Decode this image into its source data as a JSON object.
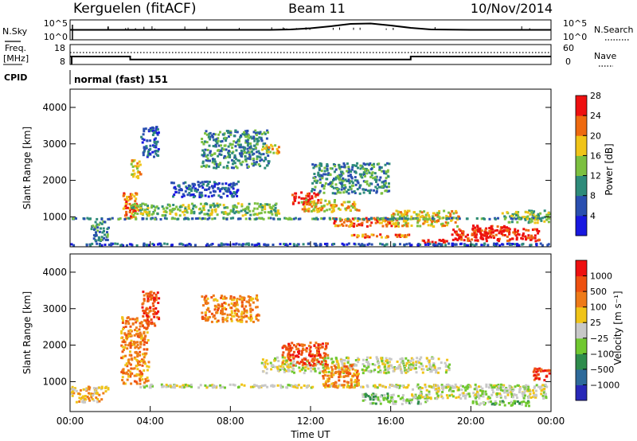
{
  "header": {
    "station": "Kerguelen (fitACF)",
    "beam": "Beam 11",
    "date": "10/Nov/2014"
  },
  "nsky_panel": {
    "left_label": "N.Sky",
    "left_ticks": [
      "10^5",
      "10^0"
    ],
    "right_label": "N.Search",
    "right_ticks": [
      "10^5",
      "10^0"
    ]
  },
  "freq_panel": {
    "left_label_line1": "Freq.",
    "left_label_line2": "[MHz]",
    "left_ticks": [
      "18",
      "8"
    ],
    "right_label": "Nave",
    "right_ticks": [
      "60",
      "0"
    ]
  },
  "cpid_panel": {
    "label": "CPID",
    "mode": "normal (fast) 151"
  },
  "chart_data": [
    {
      "type": "line",
      "name": "nsky-search",
      "x": [
        0,
        2,
        4,
        6,
        8,
        10,
        11,
        12,
        13,
        14,
        15,
        16,
        17,
        18,
        20,
        22,
        24
      ],
      "y": [
        0.5,
        0.5,
        0.5,
        0.5,
        0.5,
        0.5,
        0.52,
        0.58,
        0.68,
        0.8,
        0.82,
        0.72,
        0.6,
        0.52,
        0.5,
        0.5,
        0.5
      ],
      "ylim": [
        0,
        1
      ],
      "xlim": [
        0,
        24
      ]
    },
    {
      "type": "line",
      "name": "frequency-nave",
      "x": [
        0,
        3,
        3,
        17,
        17,
        24
      ],
      "y": [
        12,
        12,
        10.5,
        10.5,
        12,
        12
      ],
      "ylim": [
        8,
        18
      ],
      "xlim": [
        0,
        24
      ]
    },
    {
      "type": "heatmap",
      "name": "power",
      "xlim": [
        0,
        24
      ],
      "ylim": [
        180,
        4500
      ],
      "xlabel": "",
      "ylabel": "Slant Range [km]",
      "x_ticks": [
        0,
        4,
        8,
        12,
        16,
        20,
        24
      ],
      "y_ticks": [
        1000,
        2000,
        3000,
        4000
      ],
      "colorbar": {
        "label": "Power [dB]",
        "ticks": [
          "4",
          "8",
          "12",
          "16",
          "20",
          "24",
          "28"
        ],
        "colors": [
          "#1818e0",
          "#2a4fb0",
          "#2e8b7a",
          "#7cc040",
          "#f0c418",
          "#ee6a10",
          "#ee1010"
        ]
      },
      "features": [
        {
          "t": [
            1.0,
            2.0
          ],
          "r": [
            300,
            900
          ],
          "level": 2
        },
        {
          "t": [
            2.6,
            3.4
          ],
          "r": [
            900,
            1700
          ],
          "level": 5
        },
        {
          "t": [
            3.0,
            3.6
          ],
          "r": [
            2000,
            2600
          ],
          "level": 4
        },
        {
          "t": [
            3.1,
            3.5
          ],
          "r": [
            1100,
            1400
          ],
          "level": 6
        },
        {
          "t": [
            3.5,
            4.5
          ],
          "r": [
            2600,
            3500
          ],
          "level": 1
        },
        {
          "t": [
            3.0,
            10.5
          ],
          "r": [
            1000,
            1400
          ],
          "level": 3
        },
        {
          "t": [
            5.0,
            8.5
          ],
          "r": [
            1500,
            2000
          ],
          "level": 1
        },
        {
          "t": [
            6.5,
            10.0
          ],
          "r": [
            2300,
            3400
          ],
          "level": 2
        },
        {
          "t": [
            9.5,
            10.5
          ],
          "r": [
            2700,
            3000
          ],
          "level": 4
        },
        {
          "t": [
            11.0,
            12.5
          ],
          "r": [
            1300,
            1700
          ],
          "level": 6
        },
        {
          "t": [
            11.5,
            14.5
          ],
          "r": [
            1100,
            1500
          ],
          "level": 4
        },
        {
          "t": [
            12.0,
            16.0
          ],
          "r": [
            1600,
            2500
          ],
          "level": 2
        },
        {
          "t": [
            13.0,
            16.5
          ],
          "r": [
            700,
            1000
          ],
          "level": 5
        },
        {
          "t": [
            14.0,
            17.0
          ],
          "r": [
            400,
            550
          ],
          "level": 5
        },
        {
          "t": [
            16.0,
            19.5
          ],
          "r": [
            700,
            1200
          ],
          "level": 4
        },
        {
          "t": [
            17.5,
            19.0
          ],
          "r": [
            250,
            400
          ],
          "level": 6
        },
        {
          "t": [
            19.0,
            23.5
          ],
          "r": [
            300,
            700
          ],
          "level": 6
        },
        {
          "t": [
            20.0,
            22.0
          ],
          "r": [
            500,
            800
          ],
          "level": 6
        },
        {
          "t": [
            21.5,
            24.0
          ],
          "r": [
            800,
            1200
          ],
          "level": 3
        },
        {
          "t": [
            0.0,
            24.0
          ],
          "r": [
            180,
            300
          ],
          "level": 1
        },
        {
          "t": [
            0.0,
            24.0
          ],
          "r": [
            900,
            1000
          ],
          "level": 2
        }
      ]
    },
    {
      "type": "heatmap",
      "name": "velocity",
      "xlim": [
        0,
        24
      ],
      "ylim": [
        180,
        4500
      ],
      "xlabel": "Time UT",
      "ylabel": "Slant Range [km]",
      "x_ticks": [
        0,
        4,
        8,
        12,
        16,
        20,
        24
      ],
      "x_tick_labels": [
        "00:00",
        "04:00",
        "08:00",
        "12:00",
        "16:00",
        "20:00",
        "00:00"
      ],
      "y_ticks": [
        1000,
        2000,
        3000,
        4000
      ],
      "colorbar": {
        "label": "Velocity [m s⁻¹]",
        "ticks": [
          "1000",
          "500",
          "100",
          "25",
          "−25",
          "−100",
          "−500",
          "−1000"
        ],
        "colors": [
          "#2828b8",
          "#2e6a9a",
          "#2e8c4c",
          "#70c830",
          "#c8c8c8",
          "#f0c418",
          "#ee7a18",
          "#ee5010",
          "#ee1010"
        ]
      },
      "features": [
        {
          "t": [
            0.0,
            2.0
          ],
          "r": [
            400,
            900
          ],
          "level": 5
        },
        {
          "t": [
            2.5,
            4.0
          ],
          "r": [
            900,
            2800
          ],
          "level": 6
        },
        {
          "t": [
            3.5,
            4.5
          ],
          "r": [
            2500,
            3500
          ],
          "level": 7
        },
        {
          "t": [
            6.5,
            9.5
          ],
          "r": [
            2600,
            3400
          ],
          "level": 6
        },
        {
          "t": [
            3.0,
            24.0
          ],
          "r": [
            800,
            950
          ],
          "level": 4
        },
        {
          "t": [
            9.5,
            19.0
          ],
          "r": [
            1200,
            1700
          ],
          "level": 4
        },
        {
          "t": [
            10.5,
            13.0
          ],
          "r": [
            1400,
            2100
          ],
          "level": 7
        },
        {
          "t": [
            12.5,
            14.5
          ],
          "r": [
            800,
            1500
          ],
          "level": 6
        },
        {
          "t": [
            14.5,
            18.0
          ],
          "r": [
            350,
            700
          ],
          "level": 3
        },
        {
          "t": [
            17.0,
            24.0
          ],
          "r": [
            500,
            900
          ],
          "level": 4
        },
        {
          "t": [
            20.0,
            23.0
          ],
          "r": [
            300,
            500
          ],
          "level": 3
        },
        {
          "t": [
            23.0,
            24.0
          ],
          "r": [
            1000,
            1400
          ],
          "level": 7
        }
      ]
    }
  ]
}
